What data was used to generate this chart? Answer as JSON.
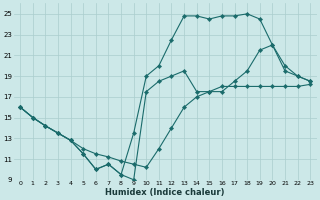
{
  "xlabel": "Humidex (Indice chaleur)",
  "background_color": "#cce8e8",
  "grid_color": "#aacece",
  "line_color": "#1a6b6b",
  "xlim": [
    -0.5,
    23.5
  ],
  "ylim": [
    9,
    26
  ],
  "xticks": [
    0,
    1,
    2,
    3,
    4,
    5,
    6,
    7,
    8,
    9,
    10,
    11,
    12,
    13,
    14,
    15,
    16,
    17,
    18,
    19,
    20,
    21,
    22,
    23
  ],
  "yticks": [
    9,
    11,
    13,
    15,
    17,
    19,
    21,
    23,
    25
  ],
  "line1_x": [
    0,
    1,
    2,
    3,
    4,
    5,
    6,
    7,
    8,
    9,
    10,
    11,
    12,
    13,
    14,
    15,
    16,
    17,
    18,
    19,
    20,
    21,
    22,
    23
  ],
  "line1_y": [
    16.0,
    15.0,
    14.2,
    13.5,
    12.8,
    12.0,
    11.5,
    11.2,
    10.8,
    10.5,
    10.2,
    12.0,
    14.0,
    16.0,
    17.0,
    17.5,
    18.0,
    18.0,
    18.0,
    18.0,
    18.0,
    18.0,
    18.0,
    18.2
  ],
  "line2_x": [
    0,
    1,
    2,
    3,
    4,
    5,
    6,
    7,
    8,
    9,
    10,
    11,
    12,
    13,
    14,
    15,
    16,
    17,
    18,
    19,
    20,
    21,
    22,
    23
  ],
  "line2_y": [
    16.0,
    15.0,
    14.2,
    13.5,
    12.8,
    11.5,
    10.0,
    10.5,
    9.5,
    13.5,
    19.0,
    20.0,
    22.5,
    24.8,
    24.8,
    24.5,
    24.8,
    24.8,
    25.0,
    24.5,
    22.0,
    20.0,
    19.0,
    18.5
  ],
  "line3_x": [
    0,
    1,
    2,
    3,
    4,
    5,
    6,
    7,
    8,
    9,
    10,
    11,
    12,
    13,
    14,
    15,
    16,
    17,
    18,
    19,
    20,
    21,
    22,
    23
  ],
  "line3_y": [
    16.0,
    15.0,
    14.2,
    13.5,
    12.8,
    11.5,
    10.0,
    10.5,
    9.5,
    9.0,
    17.5,
    18.5,
    19.0,
    19.5,
    17.5,
    17.5,
    17.5,
    18.5,
    19.5,
    21.5,
    22.0,
    19.5,
    19.0,
    18.5
  ]
}
